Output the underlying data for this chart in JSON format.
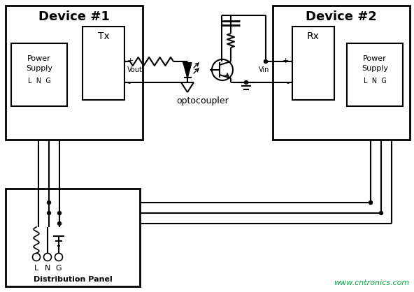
{
  "bg_color": "#ffffff",
  "lc": "#000000",
  "watermark_color": "#00aa44",
  "watermark": "www.cntronics.com",
  "device1_label": "Device #1",
  "device2_label": "Device #2",
  "tx_label": "Tx",
  "rx_label": "Rx",
  "vout_label": "Vout",
  "vin_label": "Vin",
  "optocoupler_label": "optocoupler",
  "dist_label": "Distribution Panel",
  "lw": 1.5,
  "lw2": 2.0,
  "dot_r": 2.5
}
